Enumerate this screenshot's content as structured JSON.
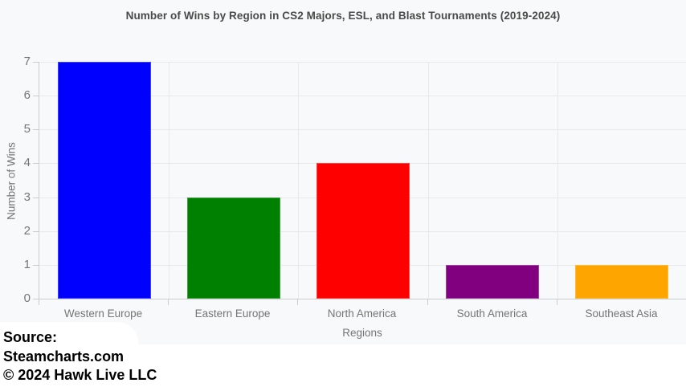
{
  "chart_data": {
    "type": "bar",
    "title": "Number of Wins by Region in CS2 Majors, ESL, and Blast Tournaments (2019-2024)",
    "categories": [
      "Western Europe",
      "Eastern Europe",
      "North America",
      "South America",
      "Southeast Asia"
    ],
    "values": [
      7,
      3,
      4,
      1,
      1
    ],
    "bar_colors": [
      "#0000ff",
      "#008000",
      "#ff0000",
      "#800080",
      "#ffa500"
    ],
    "xlabel": "Regions",
    "ylabel": "Number of Wins",
    "ylim": [
      0,
      7
    ],
    "yticks": [
      0,
      1,
      2,
      3,
      4,
      5,
      6,
      7
    ],
    "grid": true,
    "legend": "none"
  },
  "source": {
    "label": "Source:",
    "site": "Steamcharts.com",
    "copyright": "© 2024 Hawk Live LLC"
  },
  "colors": {
    "chart_background": "#f8f9fa",
    "gridline": "#e8e9eb",
    "axis_line": "#cccccc",
    "title_text": "#4a4a4a",
    "tick_text": "#757575",
    "source_text": "#000000"
  }
}
